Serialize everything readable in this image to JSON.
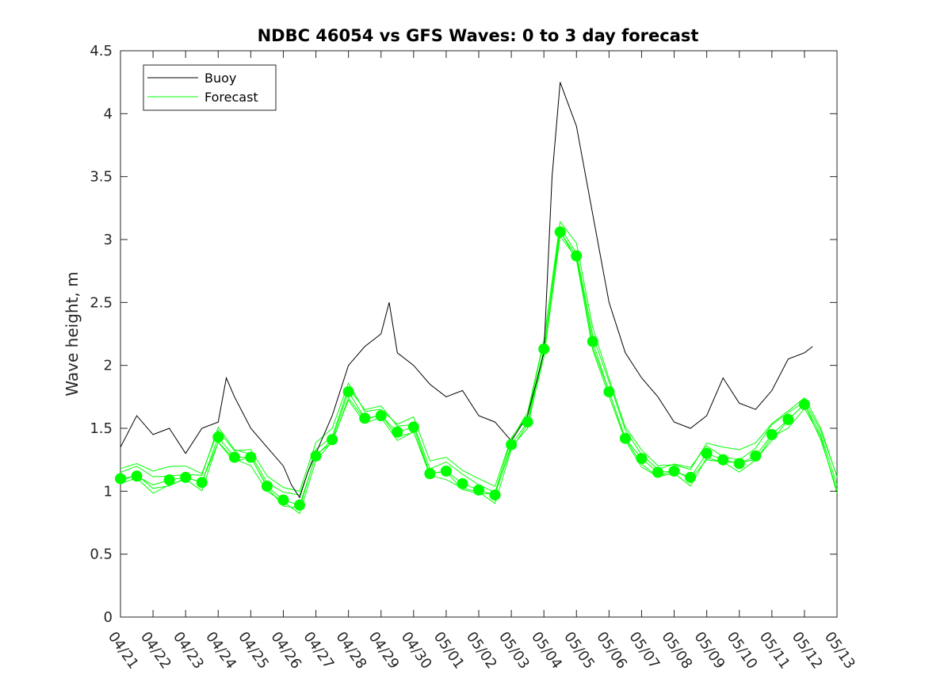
{
  "chart_data": {
    "type": "line",
    "title": "NDBC 46054 vs GFS Waves: 0 to 3 day forecast",
    "xlabel": "",
    "ylabel": "Wave height, m",
    "ylim": [
      0,
      4.5
    ],
    "yticks": [
      "0",
      "0.5",
      "1",
      "1.5",
      "2",
      "2.5",
      "3",
      "3.5",
      "4",
      "4.5"
    ],
    "xticks": [
      "04/21",
      "04/22",
      "04/23",
      "04/24",
      "04/25",
      "04/26",
      "04/27",
      "04/28",
      "04/29",
      "04/30",
      "05/01",
      "05/02",
      "05/03",
      "05/04",
      "05/05",
      "05/06",
      "05/07",
      "05/08",
      "05/09",
      "05/10",
      "05/11",
      "05/12",
      "05/13"
    ],
    "grid": false,
    "legend_position": "top-left",
    "colors": {
      "buoy": "#000000",
      "forecast": "#00ff00"
    },
    "series": [
      {
        "name": "Buoy",
        "x": [
          "04/21 00:00",
          "04/21 12:00",
          "04/22 00:00",
          "04/22 12:00",
          "04/23 00:00",
          "04/23 12:00",
          "04/24 00:00",
          "04/24 06:00",
          "04/24 12:00",
          "04/25 00:00",
          "04/25 12:00",
          "04/26 00:00",
          "04/26 06:00",
          "04/26 12:00",
          "04/26 18:00",
          "04/27 00:00",
          "04/27 12:00",
          "04/28 00:00",
          "04/28 12:00",
          "04/29 00:00",
          "04/29 06:00",
          "04/29 12:00",
          "04/30 00:00",
          "04/30 12:00",
          "05/01 00:00",
          "05/01 12:00",
          "05/02 00:00",
          "05/02 12:00",
          "05/03 00:00",
          "05/03 12:00",
          "05/04 00:00",
          "05/04 06:00",
          "05/04 12:00",
          "05/05 00:00",
          "05/05 12:00",
          "05/06 00:00",
          "05/06 12:00",
          "05/07 00:00",
          "05/07 12:00",
          "05/08 00:00",
          "05/08 12:00",
          "05/09 00:00",
          "05/09 12:00",
          "05/10 00:00",
          "05/10 12:00",
          "05/11 00:00",
          "05/11 12:00",
          "05/12 00:00",
          "05/12 06:00"
        ],
        "values": [
          1.35,
          1.6,
          1.45,
          1.5,
          1.3,
          1.5,
          1.55,
          1.9,
          1.75,
          1.5,
          1.35,
          1.2,
          1.05,
          0.95,
          1.15,
          1.3,
          1.6,
          2.0,
          2.15,
          2.25,
          2.5,
          2.1,
          2.0,
          1.85,
          1.75,
          1.8,
          1.6,
          1.55,
          1.4,
          1.6,
          2.1,
          3.5,
          4.25,
          3.9,
          3.2,
          2.5,
          2.1,
          1.9,
          1.75,
          1.55,
          1.5,
          1.6,
          1.9,
          1.7,
          1.65,
          1.8,
          2.05,
          2.1,
          2.15
        ]
      },
      {
        "name": "Forecast",
        "x": [
          "04/21 00:00",
          "04/21 12:00",
          "04/22 00:00",
          "04/22 12:00",
          "04/23 00:00",
          "04/23 12:00",
          "04/24 00:00",
          "04/24 12:00",
          "04/25 00:00",
          "04/25 12:00",
          "04/26 00:00",
          "04/26 12:00",
          "04/27 00:00",
          "04/27 12:00",
          "04/28 00:00",
          "04/28 12:00",
          "04/29 00:00",
          "04/29 12:00",
          "04/30 00:00",
          "04/30 12:00",
          "05/01 00:00",
          "05/01 12:00",
          "05/02 00:00",
          "05/02 12:00",
          "05/03 00:00",
          "05/03 12:00",
          "05/04 00:00",
          "05/04 12:00",
          "05/05 00:00",
          "05/05 12:00",
          "05/06 00:00",
          "05/06 12:00",
          "05/07 00:00",
          "05/07 12:00",
          "05/08 00:00",
          "05/08 12:00",
          "05/09 00:00",
          "05/09 12:00",
          "05/10 00:00",
          "05/10 12:00",
          "05/11 00:00",
          "05/11 12:00",
          "05/12 00:00",
          "05/12 12:00",
          "05/13 00:00"
        ],
        "values": [
          1.1,
          1.12,
          1.05,
          1.09,
          1.11,
          1.07,
          1.43,
          1.27,
          1.27,
          1.04,
          0.93,
          0.89,
          1.28,
          1.41,
          1.79,
          1.58,
          1.6,
          1.47,
          1.51,
          1.14,
          1.16,
          1.06,
          1.01,
          0.97,
          1.37,
          1.55,
          2.13,
          3.06,
          2.87,
          2.19,
          1.79,
          1.42,
          1.26,
          1.15,
          1.16,
          1.11,
          1.3,
          1.25,
          1.22,
          1.28,
          1.45,
          1.57,
          1.69,
          1.45,
          1.05
        ]
      }
    ],
    "markers": {
      "x": [
        "04/21 00:00",
        "04/21 12:00",
        "04/22 12:00",
        "04/23 00:00",
        "04/23 12:00",
        "04/24 00:00",
        "04/24 12:00",
        "04/25 00:00",
        "04/25 12:00",
        "04/26 00:00",
        "04/26 12:00",
        "04/27 00:00",
        "04/27 12:00",
        "04/28 00:00",
        "04/28 12:00",
        "04/29 00:00",
        "04/29 12:00",
        "04/30 00:00",
        "04/30 12:00",
        "05/01 00:00",
        "05/01 12:00",
        "05/02 00:00",
        "05/02 12:00",
        "05/03 00:00",
        "05/03 12:00",
        "05/04 00:00",
        "05/04 12:00",
        "05/05 00:00",
        "05/05 12:00",
        "05/06 00:00",
        "05/06 12:00",
        "05/07 00:00",
        "05/07 12:00",
        "05/08 00:00",
        "05/08 12:00",
        "05/09 00:00",
        "05/09 12:00",
        "05/10 00:00",
        "05/10 12:00",
        "05/11 00:00",
        "05/11 12:00",
        "05/12 00:00"
      ],
      "values": [
        1.1,
        1.12,
        1.09,
        1.11,
        1.07,
        1.43,
        1.27,
        1.27,
        1.04,
        0.93,
        0.89,
        1.28,
        1.41,
        1.79,
        1.58,
        1.6,
        1.47,
        1.51,
        1.14,
        1.16,
        1.06,
        1.01,
        0.97,
        1.37,
        1.55,
        2.13,
        3.06,
        2.87,
        2.19,
        1.79,
        1.42,
        1.26,
        1.15,
        1.16,
        1.11,
        1.3,
        1.25,
        1.22,
        1.28,
        1.45,
        1.57,
        1.69
      ]
    }
  }
}
